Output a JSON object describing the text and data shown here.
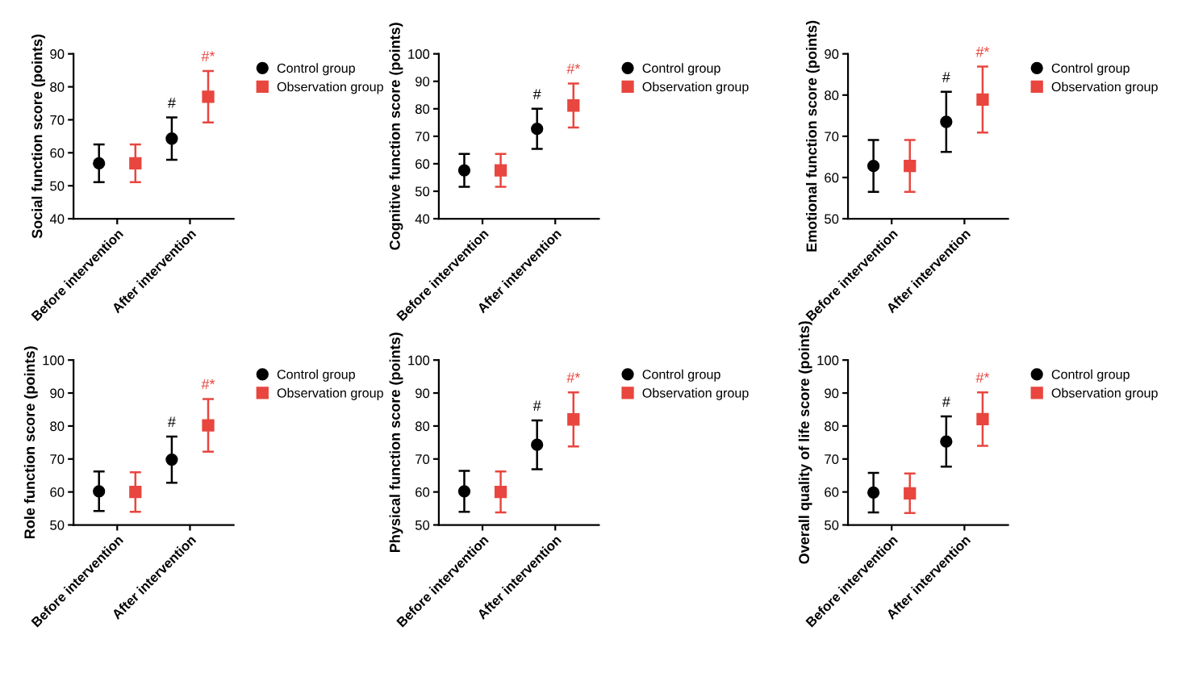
{
  "chart_data": [
    {
      "type": "scatter",
      "ylabel": "Social function score (points)",
      "categories": [
        "Before intervention",
        "After intervention"
      ],
      "ylim": [
        40,
        90
      ],
      "yticks": [
        40,
        50,
        60,
        70,
        80,
        90
      ],
      "legend": "right",
      "grid": false,
      "series": [
        {
          "name": "Control group",
          "color": "#000000",
          "marker": "circle",
          "values": [
            56.8,
            64.3
          ],
          "errors": [
            5.7,
            6.4
          ]
        },
        {
          "name": "Observation group",
          "color": "#e8463f",
          "marker": "square",
          "values": [
            56.8,
            77
          ],
          "errors": [
            5.7,
            7.8
          ]
        }
      ],
      "annotations": [
        "#",
        "#*"
      ]
    },
    {
      "type": "scatter",
      "ylabel": "Cognitive function score (points)",
      "categories": [
        "Before intervention",
        "After intervention"
      ],
      "ylim": [
        40,
        100
      ],
      "yticks": [
        40,
        50,
        60,
        70,
        80,
        90,
        100
      ],
      "legend": "right",
      "grid": false,
      "series": [
        {
          "name": "Control group",
          "color": "#000000",
          "marker": "circle",
          "values": [
            57.6,
            72.7
          ],
          "errors": [
            6,
            7.3
          ]
        },
        {
          "name": "Observation group",
          "color": "#e8463f",
          "marker": "square",
          "values": [
            57.6,
            81.2
          ],
          "errors": [
            6,
            8
          ]
        }
      ],
      "annotations": [
        "#",
        "#*"
      ]
    },
    {
      "type": "scatter",
      "ylabel": "Emotional function score (points)",
      "categories": [
        "Before intervention",
        "After intervention"
      ],
      "ylim": [
        50,
        90
      ],
      "yticks": [
        50,
        60,
        70,
        80,
        90
      ],
      "legend": "right",
      "grid": false,
      "series": [
        {
          "name": "Control group",
          "color": "#000000",
          "marker": "circle",
          "values": [
            62.8,
            73.5
          ],
          "errors": [
            6.3,
            7.3
          ]
        },
        {
          "name": "Observation group",
          "color": "#e8463f",
          "marker": "square",
          "values": [
            62.8,
            78.9
          ],
          "errors": [
            6.3,
            8
          ]
        }
      ],
      "annotations": [
        "#",
        "#*"
      ]
    },
    {
      "type": "scatter",
      "ylabel": "Role function score (points)",
      "categories": [
        "Before intervention",
        "After intervention"
      ],
      "ylim": [
        50,
        100
      ],
      "yticks": [
        50,
        60,
        70,
        80,
        90,
        100
      ],
      "legend": "right",
      "grid": false,
      "series": [
        {
          "name": "Control group",
          "color": "#000000",
          "marker": "circle",
          "values": [
            60.2,
            69.8
          ],
          "errors": [
            6,
            7
          ]
        },
        {
          "name": "Observation group",
          "color": "#e8463f",
          "marker": "square",
          "values": [
            60,
            80.2
          ],
          "errors": [
            6,
            8
          ]
        }
      ],
      "annotations": [
        "#",
        "#*"
      ]
    },
    {
      "type": "scatter",
      "ylabel": "Physical function score (points)",
      "categories": [
        "Before intervention",
        "After intervention"
      ],
      "ylim": [
        50,
        100
      ],
      "yticks": [
        50,
        60,
        70,
        80,
        90,
        100
      ],
      "legend": "right",
      "grid": false,
      "series": [
        {
          "name": "Control group",
          "color": "#000000",
          "marker": "circle",
          "values": [
            60.2,
            74.3
          ],
          "errors": [
            6.2,
            7.4
          ]
        },
        {
          "name": "Observation group",
          "color": "#e8463f",
          "marker": "square",
          "values": [
            60,
            82
          ],
          "errors": [
            6.2,
            8.2
          ]
        }
      ],
      "annotations": [
        "#",
        "#*"
      ]
    },
    {
      "type": "scatter",
      "ylabel": "Overall quality of life score (points)",
      "categories": [
        "Before intervention",
        "After intervention"
      ],
      "ylim": [
        50,
        100
      ],
      "yticks": [
        50,
        60,
        70,
        80,
        90,
        100
      ],
      "legend": "right",
      "grid": false,
      "series": [
        {
          "name": "Control group",
          "color": "#000000",
          "marker": "circle",
          "values": [
            59.8,
            75.3
          ],
          "errors": [
            6,
            7.6
          ]
        },
        {
          "name": "Observation group",
          "color": "#e8463f",
          "marker": "square",
          "values": [
            59.6,
            82.1
          ],
          "errors": [
            6,
            8.1
          ]
        }
      ],
      "annotations": [
        "#",
        "#*"
      ]
    }
  ]
}
